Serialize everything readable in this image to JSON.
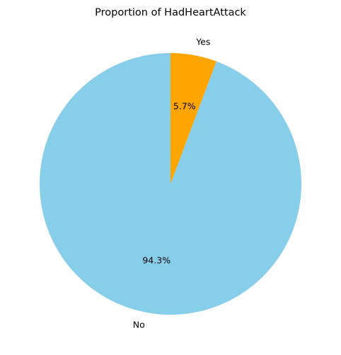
{
  "chart_data": {
    "type": "pie",
    "title": "Proportion of HadHeartAttack",
    "categories": [
      "No",
      "Yes"
    ],
    "values": [
      94.3,
      5.7
    ],
    "labels": [
      "94.3%",
      "5.7%"
    ],
    "colors": [
      "#87CEEB",
      "#FFA500"
    ],
    "start_angle": "top",
    "direction": "counterclockwise",
    "legend": "none"
  }
}
